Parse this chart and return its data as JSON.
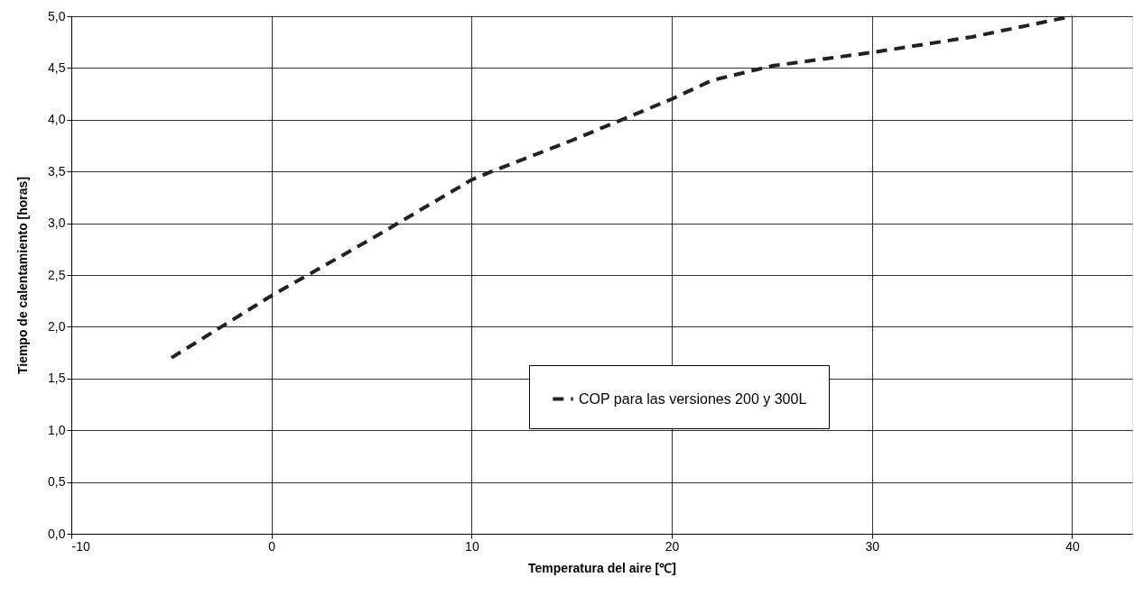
{
  "chart_data": {
    "type": "line",
    "xlabel": "Temperatura del aire [℃]",
    "ylabel": "Tiempo de calentamiento [horas]",
    "xlim": [
      -10,
      43
    ],
    "xticks": [
      -10,
      0,
      10,
      20,
      30,
      40
    ],
    "ylim": [
      0,
      5
    ],
    "yticks": [
      {
        "value": 0,
        "label": "0,0"
      },
      {
        "value": 0.5,
        "label": "0,5"
      },
      {
        "value": 1,
        "label": "1,0"
      },
      {
        "value": 1.5,
        "label": "1,5"
      },
      {
        "value": 2,
        "label": "2,0"
      },
      {
        "value": 2.5,
        "label": "2,5"
      },
      {
        "value": 3,
        "label": "3,0"
      },
      {
        "value": 3.5,
        "label": "3,5"
      },
      {
        "value": 4,
        "label": "4,0"
      },
      {
        "value": 4.5,
        "label": "4,5"
      },
      {
        "value": 5,
        "label": "5,0"
      }
    ],
    "grid": true,
    "legend": "bottom right",
    "marker": "none",
    "line_style": "dashed",
    "series": [
      {
        "name": "COP para las versiones 200 y 300L",
        "color": "#222222",
        "x": [
          -5,
          -2.5,
          0,
          5,
          10,
          11,
          15,
          20,
          22,
          25,
          30,
          35,
          40
        ],
        "values": [
          1.7,
          2.0,
          2.3,
          2.85,
          3.42,
          3.5,
          3.8,
          4.2,
          4.38,
          4.52,
          4.65,
          4.8,
          5.0
        ]
      }
    ]
  }
}
